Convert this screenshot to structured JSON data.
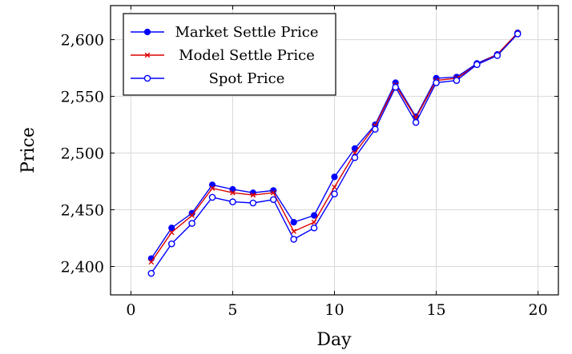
{
  "chart_data": {
    "type": "line",
    "title": "",
    "xlabel": "Day",
    "ylabel": "Price",
    "xlim": [
      -1,
      21
    ],
    "ylim": [
      2375,
      2630
    ],
    "xticks": [
      0,
      5,
      10,
      15,
      20
    ],
    "xtick_labels": [
      "0",
      "5",
      "10",
      "15",
      "20"
    ],
    "yticks": [
      2400,
      2450,
      2500,
      2550,
      2600
    ],
    "ytick_labels": [
      "2,400",
      "2,450",
      "2,500",
      "2,550",
      "2,600"
    ],
    "grid": true,
    "legend_position": "top-left",
    "x": [
      1,
      2,
      3,
      4,
      5,
      6,
      7,
      8,
      9,
      10,
      11,
      12,
      13,
      14,
      15,
      16,
      17,
      18,
      19
    ],
    "series": [
      {
        "name": "Market Settle Price",
        "color": "#0000ff",
        "marker": "filled-circle",
        "values": [
          2407,
          2434,
          2447,
          2472,
          2468,
          2465,
          2467,
          2439,
          2445,
          2479,
          2504,
          2525,
          2562,
          2532,
          2566,
          2567,
          2579,
          2587,
          2606
        ]
      },
      {
        "name": "Model Settle Price",
        "color": "#dd0000",
        "marker": "x",
        "values": [
          2404,
          2430,
          2445,
          2469,
          2465,
          2463,
          2465,
          2431,
          2439,
          2470,
          2500,
          2524,
          2560,
          2531,
          2564,
          2566,
          2578,
          2587,
          2606
        ]
      },
      {
        "name": "Spot Price",
        "color": "#0000ff",
        "marker": "open-circle",
        "values": [
          2394,
          2420,
          2438,
          2461,
          2457,
          2456,
          2459,
          2424,
          2434,
          2464,
          2496,
          2521,
          2558,
          2527,
          2562,
          2564,
          2578,
          2586,
          2605
        ]
      }
    ]
  }
}
